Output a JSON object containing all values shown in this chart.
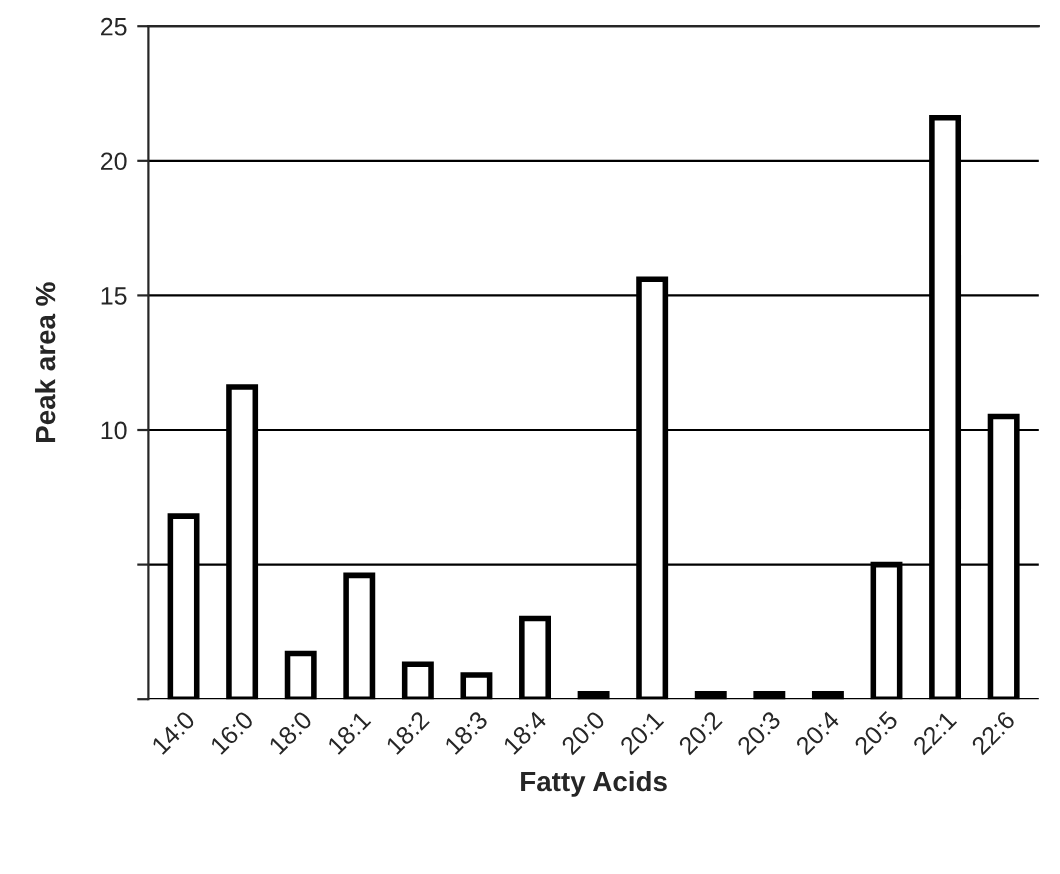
{
  "chart_data": {
    "type": "bar",
    "xlabel": "Fatty Acids",
    "ylabel": "Peak area %",
    "categories": [
      "14:0",
      "16:0",
      "18:0",
      "18:1",
      "18:2",
      "18:3",
      "18:4",
      "20:0",
      "20:1",
      "20:2",
      "20:3",
      "20:4",
      "20:5",
      "22:1",
      "22:6"
    ],
    "values": [
      6.8,
      11.6,
      1.7,
      4.6,
      1.3,
      0.9,
      3.0,
      0.2,
      15.6,
      0.2,
      0.2,
      0.2,
      5.0,
      21.6,
      10.5
    ],
    "color": "#ffffff",
    "ylim": [
      0,
      25
    ],
    "yticks": [
      {
        "value": 0,
        "label": null
      },
      {
        "value": 5,
        "label": null
      },
      10,
      15,
      20,
      25
    ],
    "grid": "y"
  }
}
